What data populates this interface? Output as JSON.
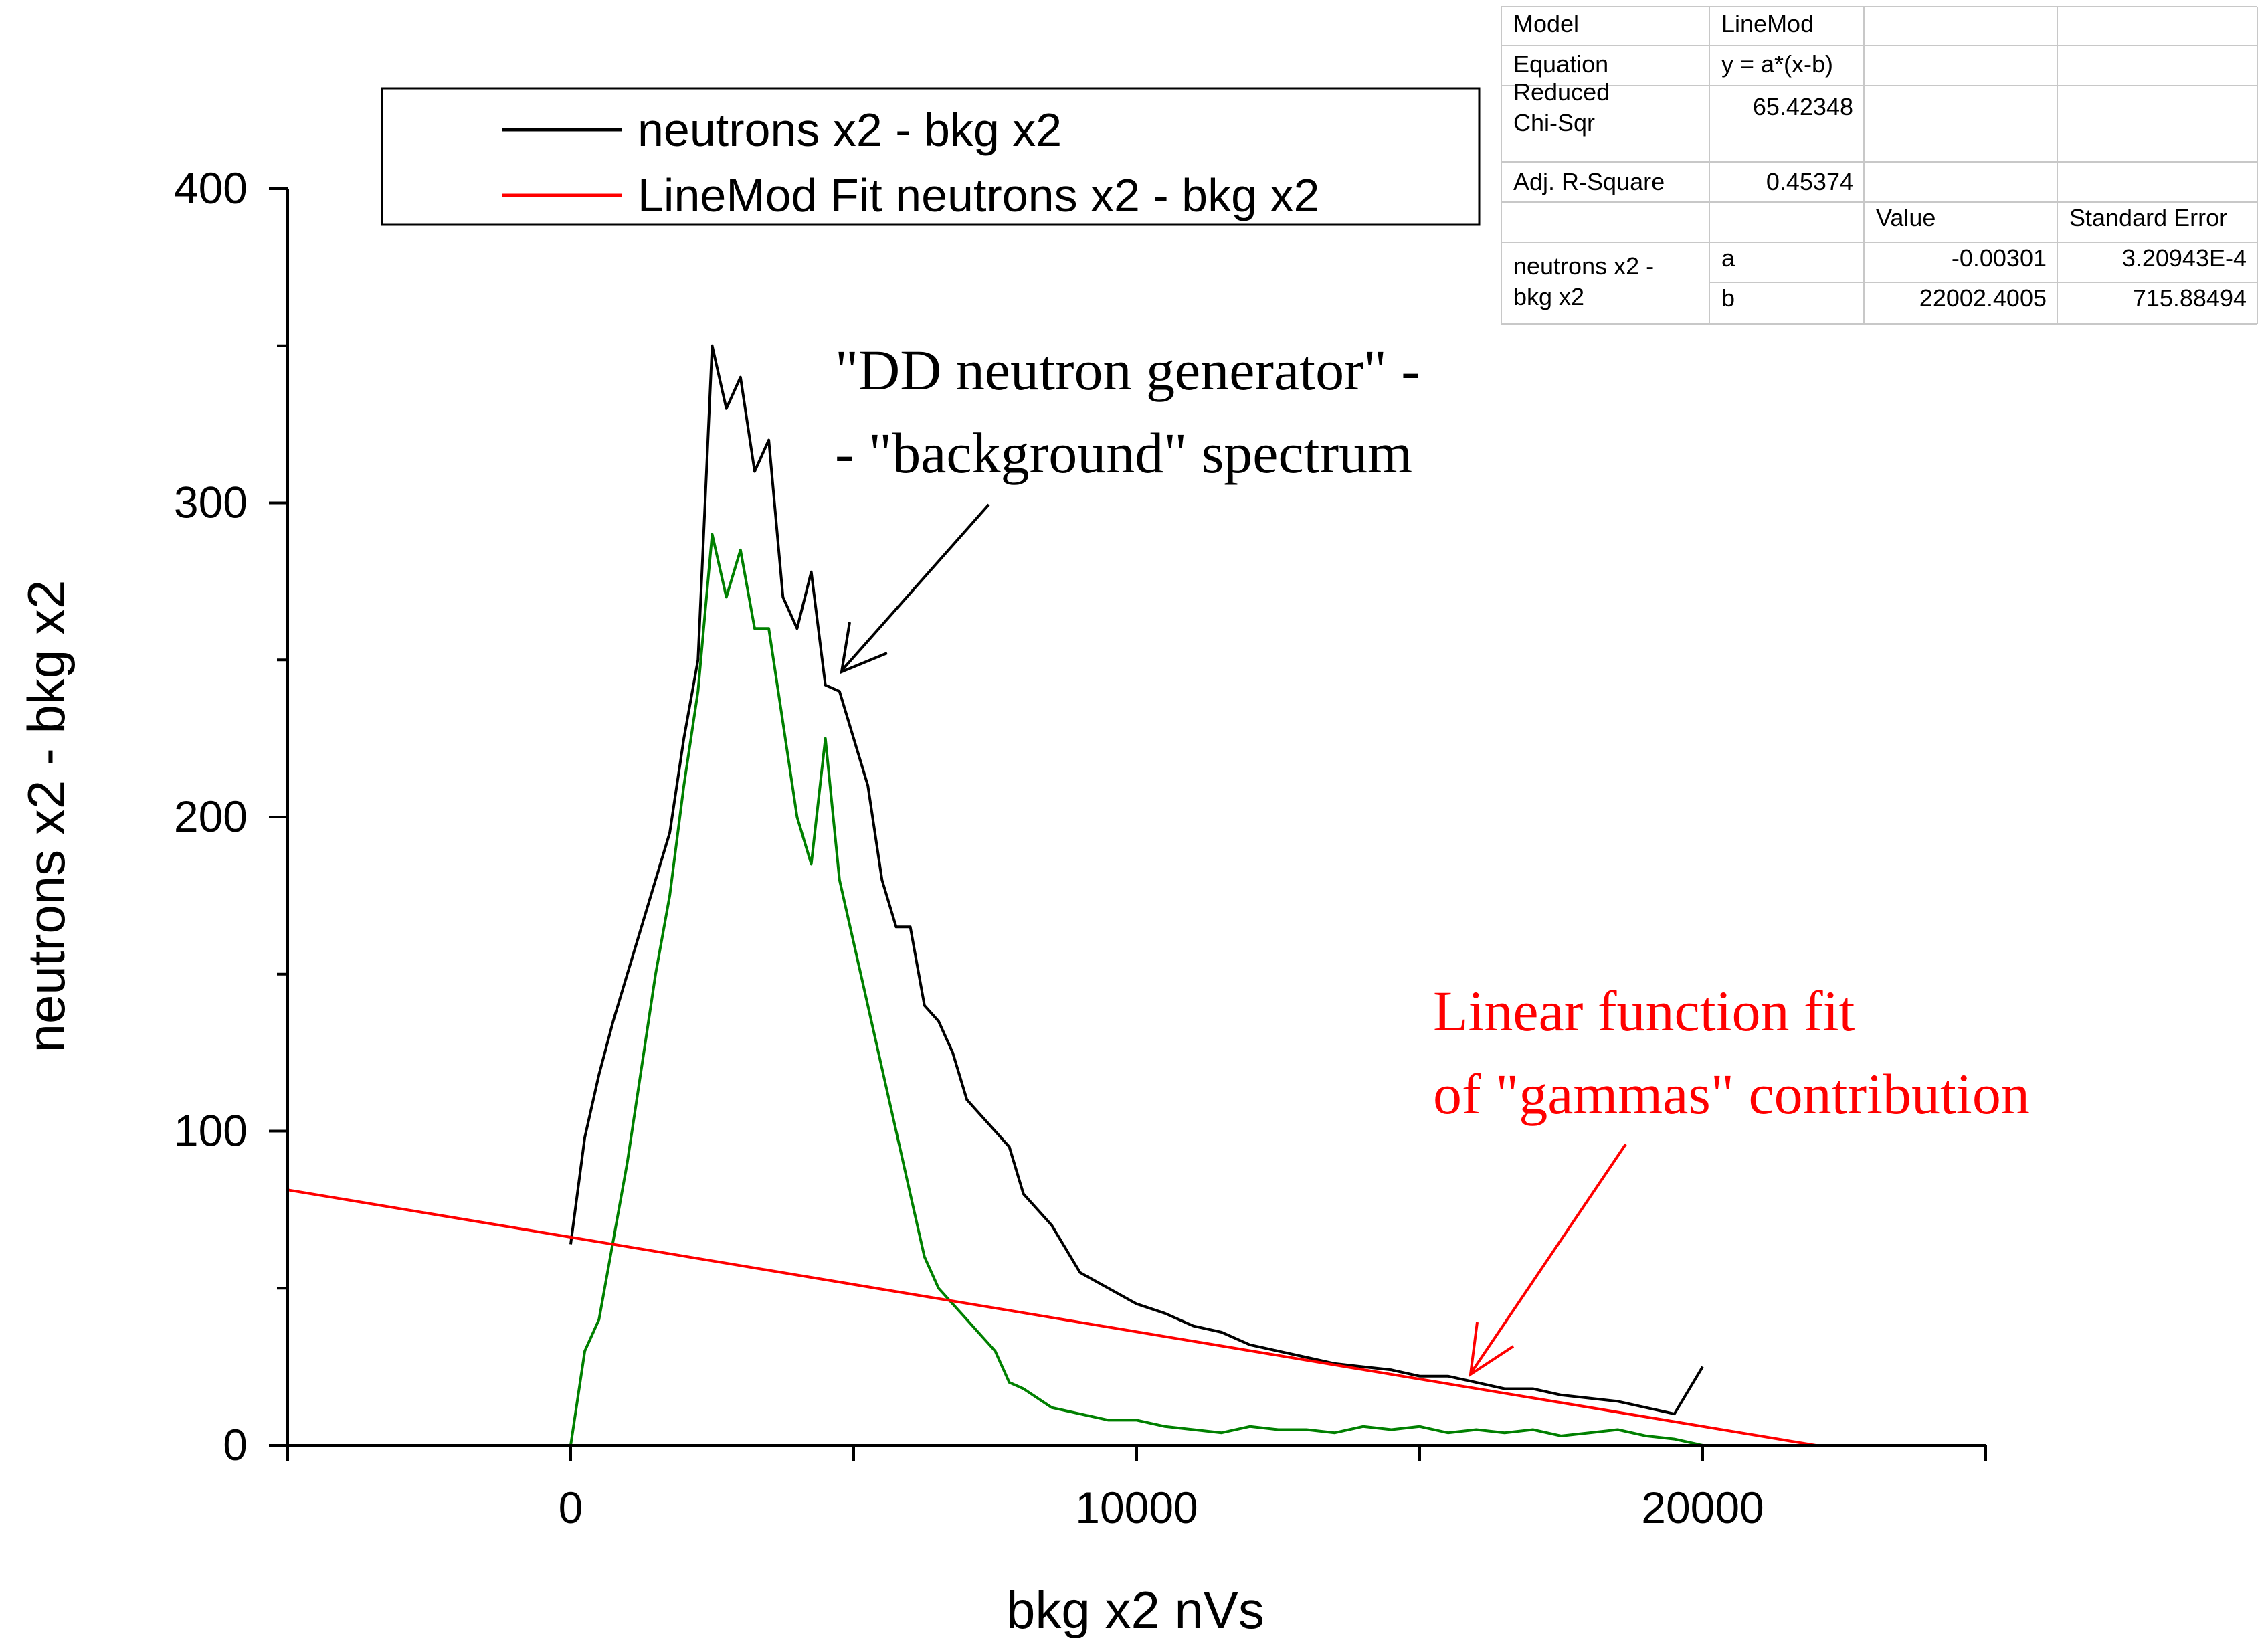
{
  "chart_data": {
    "type": "line",
    "xlabel": "bkg x2 nVs",
    "ylabel": "neutrons x2 - bkg x2",
    "xlim": [
      -5000,
      25000
    ],
    "ylim": [
      0,
      400
    ],
    "x_ticks": [
      "0",
      "10000",
      "20000"
    ],
    "y_ticks": [
      "0",
      "100",
      "200",
      "300",
      "400"
    ],
    "x_tick_values": [
      0,
      10000,
      20000
    ],
    "y_tick_values": [
      0,
      100,
      200,
      300,
      400
    ],
    "grid": false,
    "legend_position": "top",
    "legend": [
      {
        "label": "neutrons x2 - bkg x2",
        "color": "#000000"
      },
      {
        "label": "LineMod Fit neutrons x2 - bkg x2",
        "color": "#ff0000"
      }
    ],
    "series": [
      {
        "name": "neutrons x2 - bkg x2",
        "color": "#000000",
        "x": [
          0,
          250,
          500,
          750,
          1000,
          1250,
          1500,
          1750,
          2000,
          2250,
          2500,
          2750,
          3000,
          3250,
          3500,
          3750,
          4000,
          4250,
          4500,
          4750,
          5000,
          5250,
          5500,
          5750,
          6000,
          6250,
          6500,
          6750,
          7000,
          7250,
          7500,
          7750,
          8000,
          8500,
          9000,
          9500,
          10000,
          10500,
          11000,
          11500,
          12000,
          12500,
          13000,
          13500,
          14000,
          14500,
          15000,
          15500,
          16000,
          16500,
          17000,
          17500,
          18000,
          18500,
          19000,
          19500,
          20000
        ],
        "y": [
          64,
          98,
          118,
          135,
          150,
          165,
          180,
          195,
          225,
          250,
          350,
          330,
          340,
          310,
          320,
          270,
          260,
          278,
          242,
          240,
          225,
          210,
          180,
          165,
          165,
          140,
          135,
          125,
          110,
          105,
          100,
          95,
          80,
          70,
          55,
          50,
          45,
          42,
          38,
          36,
          32,
          30,
          28,
          26,
          25,
          24,
          22,
          22,
          20,
          18,
          18,
          16,
          15,
          14,
          12,
          10,
          25
        ]
      },
      {
        "name": "(green, no legend entry)",
        "color": "#008000",
        "x": [
          0,
          250,
          500,
          750,
          1000,
          1250,
          1500,
          1750,
          2000,
          2250,
          2500,
          2750,
          3000,
          3250,
          3500,
          3750,
          4000,
          4250,
          4500,
          4750,
          5000,
          5250,
          5500,
          5750,
          6000,
          6250,
          6500,
          6750,
          7000,
          7250,
          7500,
          7750,
          8000,
          8500,
          9000,
          9500,
          10000,
          10500,
          11000,
          11500,
          12000,
          12500,
          13000,
          13500,
          14000,
          14500,
          15000,
          15500,
          16000,
          16500,
          17000,
          17500,
          18000,
          18500,
          19000,
          19500,
          20000
        ],
        "y": [
          0,
          30,
          40,
          65,
          90,
          120,
          150,
          175,
          210,
          240,
          290,
          270,
          285,
          260,
          260,
          230,
          200,
          185,
          225,
          180,
          160,
          140,
          120,
          100,
          80,
          60,
          50,
          45,
          40,
          35,
          30,
          20,
          18,
          12,
          10,
          8,
          8,
          6,
          5,
          4,
          6,
          5,
          5,
          4,
          6,
          5,
          6,
          4,
          5,
          4,
          5,
          3,
          4,
          5,
          3,
          2,
          0
        ]
      },
      {
        "name": "LineMod Fit neutrons x2 - bkg x2",
        "color": "#ff0000",
        "x": [
          -5000,
          22000
        ],
        "y": [
          81.3,
          0
        ]
      }
    ]
  },
  "stats_table": {
    "rows": [
      [
        "Model",
        "LineMod",
        "",
        ""
      ],
      [
        "Equation",
        "y = a*(x-b)",
        "",
        ""
      ],
      [
        "Reduced\nChi-Sqr",
        "65.42348",
        "",
        ""
      ],
      [
        "Adj. R-Square",
        "0.45374",
        "",
        ""
      ],
      [
        "",
        "",
        "Value",
        "Standard Error"
      ],
      [
        "neutrons x2 -\nbkg x2",
        "a",
        "-0.00301",
        "3.20943E-4"
      ],
      [
        "",
        "b",
        "22002.4005",
        "715.88494"
      ]
    ]
  },
  "annotations": {
    "dd_line1": "\"DD neutron generator\" -",
    "dd_line2": "- \"background\" spectrum",
    "fit_line1": "Linear function fit",
    "fit_line2": "of \"gammas\" contribution"
  }
}
